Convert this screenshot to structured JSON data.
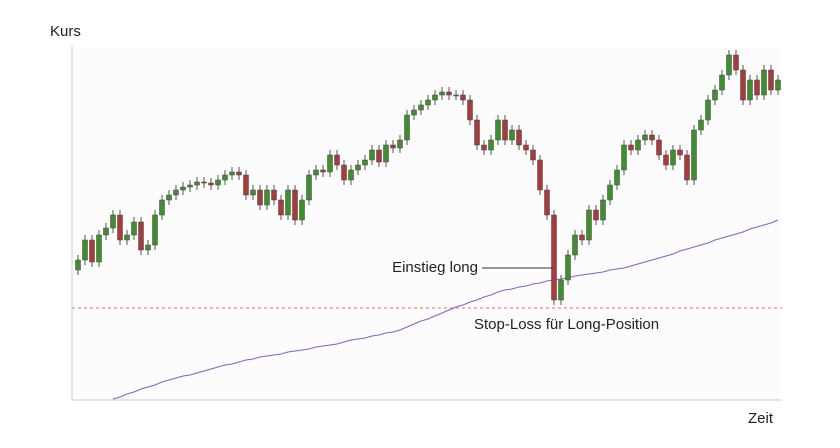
{
  "chart_data": {
    "type": "candlestick",
    "y_label": "Kurs",
    "x_label": "Zeit",
    "ylim": [
      0,
      350
    ],
    "up_color": "#3f8f2f",
    "down_color": "#a83c3c",
    "open": [
      130,
      140,
      160,
      138,
      165,
      172,
      185,
      160,
      165,
      178,
      150,
      155,
      185,
      200,
      205,
      210,
      213,
      215,
      218,
      217,
      215,
      220,
      225,
      228,
      225,
      205,
      210,
      195,
      210,
      200,
      185,
      210,
      180,
      200,
      225,
      230,
      228,
      245,
      235,
      220,
      230,
      235,
      240,
      250,
      238,
      255,
      252,
      260,
      285,
      290,
      295,
      300,
      305,
      308,
      305,
      305,
      300,
      280,
      255,
      250,
      260,
      280,
      260,
      270,
      255,
      250,
      240,
      210,
      185,
      100,
      120,
      145,
      165,
      160,
      190,
      180,
      200,
      215,
      230,
      255,
      250,
      260,
      265,
      260,
      245,
      235,
      250,
      245,
      220,
      270,
      280,
      300,
      310,
      325,
      345,
      330,
      300,
      320,
      305,
      330,
      310
    ],
    "high": [
      145,
      165,
      165,
      170,
      177,
      190,
      190,
      170,
      183,
      183,
      160,
      190,
      205,
      210,
      215,
      218,
      220,
      223,
      223,
      222,
      225,
      230,
      233,
      233,
      230,
      215,
      215,
      215,
      215,
      205,
      215,
      215,
      205,
      230,
      235,
      235,
      250,
      250,
      240,
      235,
      240,
      245,
      255,
      255,
      260,
      260,
      265,
      290,
      295,
      300,
      305,
      310,
      313,
      313,
      310,
      310,
      305,
      285,
      260,
      265,
      285,
      285,
      275,
      275,
      260,
      255,
      245,
      215,
      190,
      125,
      150,
      170,
      170,
      195,
      195,
      205,
      220,
      235,
      260,
      260,
      265,
      270,
      270,
      265,
      250,
      255,
      255,
      250,
      275,
      285,
      305,
      315,
      330,
      350,
      350,
      335,
      325,
      325,
      335,
      335,
      325
    ],
    "low": [
      125,
      135,
      133,
      133,
      160,
      167,
      155,
      155,
      160,
      145,
      145,
      150,
      180,
      195,
      200,
      205,
      208,
      210,
      212,
      210,
      210,
      215,
      220,
      220,
      200,
      200,
      190,
      190,
      195,
      180,
      180,
      175,
      175,
      195,
      220,
      223,
      223,
      230,
      215,
      215,
      225,
      230,
      235,
      233,
      233,
      247,
      247,
      255,
      280,
      285,
      290,
      295,
      300,
      300,
      300,
      295,
      275,
      250,
      245,
      245,
      255,
      255,
      255,
      250,
      245,
      235,
      205,
      180,
      95,
      95,
      115,
      140,
      155,
      155,
      175,
      175,
      195,
      210,
      225,
      245,
      245,
      255,
      255,
      240,
      230,
      230,
      240,
      215,
      215,
      265,
      275,
      295,
      305,
      320,
      325,
      295,
      295,
      300,
      300,
      305,
      305
    ],
    "close": [
      140,
      160,
      138,
      165,
      172,
      185,
      160,
      165,
      178,
      150,
      155,
      185,
      200,
      205,
      210,
      213,
      215,
      218,
      217,
      215,
      220,
      225,
      228,
      225,
      205,
      210,
      195,
      210,
      200,
      185,
      210,
      180,
      200,
      225,
      230,
      228,
      245,
      235,
      220,
      230,
      235,
      240,
      250,
      238,
      255,
      252,
      260,
      285,
      290,
      295,
      300,
      305,
      308,
      305,
      305,
      300,
      280,
      255,
      250,
      260,
      280,
      260,
      270,
      255,
      250,
      240,
      210,
      185,
      100,
      120,
      145,
      165,
      160,
      190,
      180,
      200,
      215,
      230,
      255,
      250,
      260,
      265,
      260,
      245,
      235,
      250,
      245,
      220,
      270,
      280,
      300,
      310,
      325,
      345,
      330,
      300,
      320,
      305,
      330,
      310,
      320
    ],
    "moving_average": {
      "color": "#8a5cc8",
      "values": [
        null,
        null,
        null,
        null,
        null,
        1,
        3,
        6,
        8,
        11,
        13,
        15,
        18,
        20,
        22,
        24,
        25,
        27,
        29,
        31,
        33,
        35,
        36,
        38,
        40,
        41,
        43,
        44,
        45,
        46,
        48,
        49,
        50,
        51,
        53,
        54,
        55,
        56,
        58,
        60,
        61,
        62,
        64,
        65,
        67,
        68,
        70,
        73,
        76,
        79,
        81,
        84,
        87,
        90,
        93,
        95,
        98,
        100,
        103,
        105,
        108,
        110,
        111,
        113,
        114,
        116,
        117,
        119,
        120,
        121,
        122,
        124,
        125,
        126,
        127,
        128,
        130,
        131,
        132,
        134,
        136,
        138,
        140,
        142,
        144,
        146,
        149,
        151,
        153,
        155,
        157,
        160,
        162,
        164,
        166,
        168,
        171,
        173,
        175,
        177,
        180
      ]
    },
    "entry": {
      "label": "Einstieg long",
      "value": 132
    },
    "stop_loss": {
      "label": "Stop-Loss für Long-Position",
      "value": 92,
      "color": "#e07070"
    }
  }
}
